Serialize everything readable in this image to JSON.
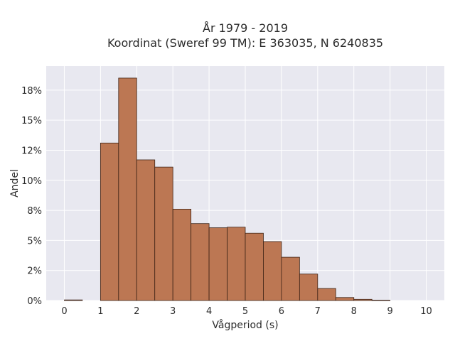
{
  "chart_data": {
    "type": "bar",
    "title_lines": [
      "År 1979 - 2019",
      "Koordinat (Sweref 99 TM): E 363035, N 6240835"
    ],
    "xlabel": "Vågperiod (s)",
    "ylabel": "Andel",
    "xlim": [
      -0.5,
      10.5
    ],
    "ylim": [
      0,
      19.5
    ],
    "x_ticks": [
      0,
      1,
      2,
      3,
      4,
      5,
      6,
      7,
      8,
      9,
      10
    ],
    "y_ticks": [
      0,
      2.5,
      5,
      7.5,
      10,
      12.5,
      15,
      17.5
    ],
    "y_tick_labels": [
      "0%",
      "2%",
      "5%",
      "8%",
      "10%",
      "12%",
      "15%",
      "18%"
    ],
    "grid": true,
    "bin_width": 0.5,
    "bins": [
      {
        "x_start": 0.0,
        "value": 0.05
      },
      {
        "x_start": 0.5,
        "value": 0.0
      },
      {
        "x_start": 1.0,
        "value": 13.1
      },
      {
        "x_start": 1.5,
        "value": 18.5
      },
      {
        "x_start": 2.0,
        "value": 11.7
      },
      {
        "x_start": 2.5,
        "value": 11.1
      },
      {
        "x_start": 3.0,
        "value": 7.6
      },
      {
        "x_start": 3.5,
        "value": 6.4
      },
      {
        "x_start": 4.0,
        "value": 6.05
      },
      {
        "x_start": 4.5,
        "value": 6.1
      },
      {
        "x_start": 5.0,
        "value": 5.6
      },
      {
        "x_start": 5.5,
        "value": 4.9
      },
      {
        "x_start": 6.0,
        "value": 3.6
      },
      {
        "x_start": 6.5,
        "value": 2.2
      },
      {
        "x_start": 7.0,
        "value": 1.0
      },
      {
        "x_start": 7.5,
        "value": 0.25
      },
      {
        "x_start": 8.0,
        "value": 0.1
      },
      {
        "x_start": 8.5,
        "value": 0.03
      },
      {
        "x_start": 9.0,
        "value": 0.0
      },
      {
        "x_start": 9.5,
        "value": 0.0
      }
    ],
    "colors": {
      "bar_fill": "#bc7753",
      "bar_edge": "#3d2316",
      "plot_background": "#e8e8f0",
      "grid": "#ffffff",
      "text": "#2b2b2b"
    }
  }
}
